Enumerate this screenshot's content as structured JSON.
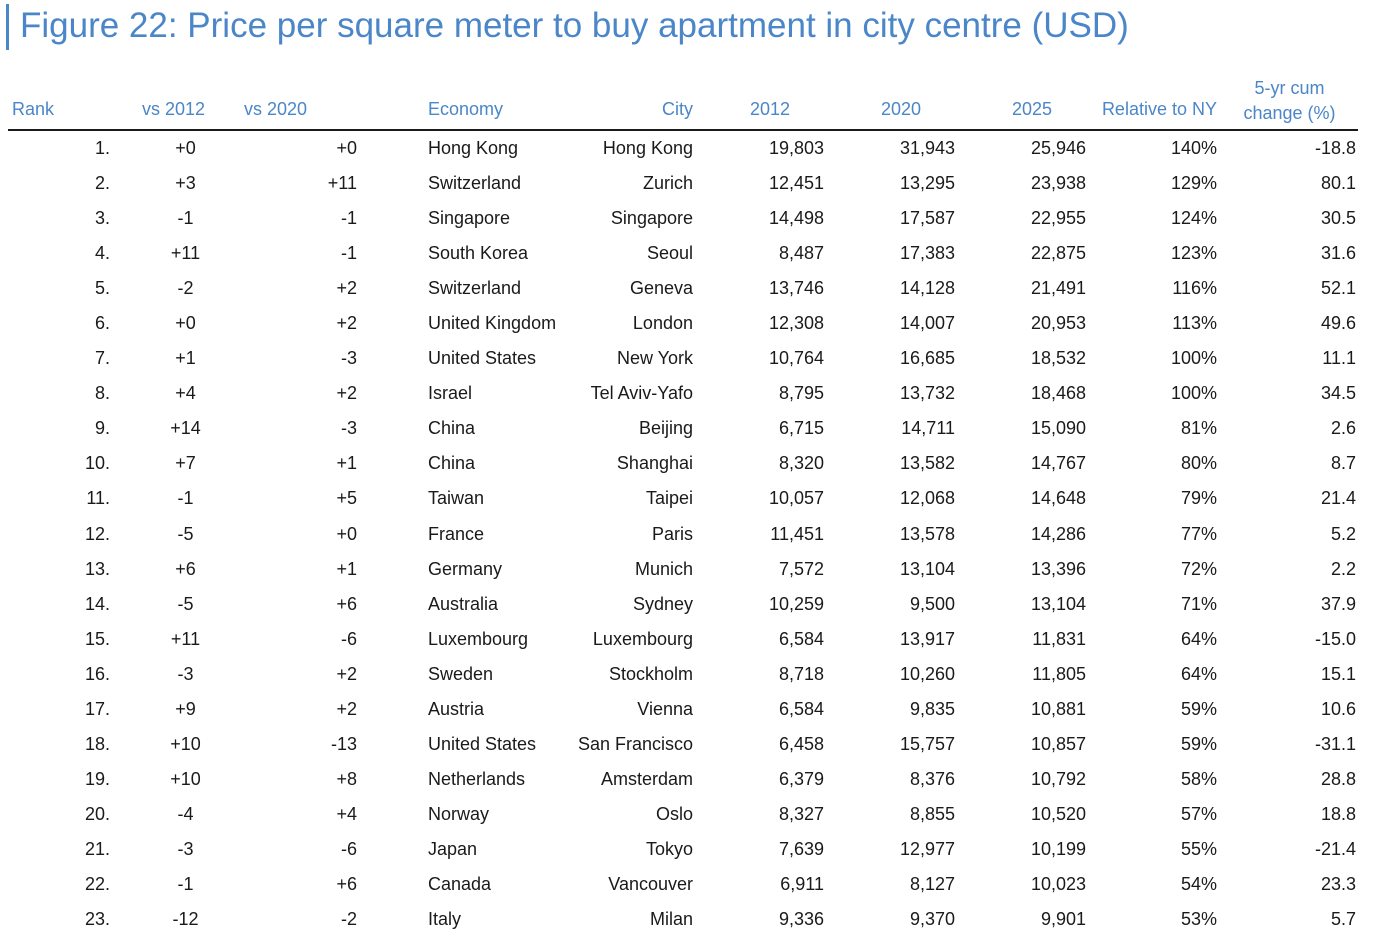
{
  "title": "Figure 22: Price per square meter to buy apartment in city centre (USD)",
  "chart_data": {
    "type": "table",
    "title": "Figure 22: Price per square meter to buy apartment in city centre (USD)",
    "columns": [
      "Rank",
      "vs 2012",
      "vs 2020",
      "Economy",
      "City",
      "2012",
      "2020",
      "2025",
      "Relative to NY",
      "5-yr cum change (%)"
    ],
    "rows": [
      [
        "1.",
        "+0",
        "+0",
        "Hong Kong",
        "Hong Kong",
        "19,803",
        "31,943",
        "25,946",
        "140%",
        "-18.8"
      ],
      [
        "2.",
        "+3",
        "+11",
        "Switzerland",
        "Zurich",
        "12,451",
        "13,295",
        "23,938",
        "129%",
        "80.1"
      ],
      [
        "3.",
        "-1",
        "-1",
        "Singapore",
        "Singapore",
        "14,498",
        "17,587",
        "22,955",
        "124%",
        "30.5"
      ],
      [
        "4.",
        "+11",
        "-1",
        "South Korea",
        "Seoul",
        "8,487",
        "17,383",
        "22,875",
        "123%",
        "31.6"
      ],
      [
        "5.",
        "-2",
        "+2",
        "Switzerland",
        "Geneva",
        "13,746",
        "14,128",
        "21,491",
        "116%",
        "52.1"
      ],
      [
        "6.",
        "+0",
        "+2",
        "United Kingdom",
        "London",
        "12,308",
        "14,007",
        "20,953",
        "113%",
        "49.6"
      ],
      [
        "7.",
        "+1",
        "-3",
        "United States",
        "New York",
        "10,764",
        "16,685",
        "18,532",
        "100%",
        "11.1"
      ],
      [
        "8.",
        "+4",
        "+2",
        "Israel",
        "Tel Aviv-Yafo",
        "8,795",
        "13,732",
        "18,468",
        "100%",
        "34.5"
      ],
      [
        "9.",
        "+14",
        "-3",
        "China",
        "Beijing",
        "6,715",
        "14,711",
        "15,090",
        "81%",
        "2.6"
      ],
      [
        "10.",
        "+7",
        "+1",
        "China",
        "Shanghai",
        "8,320",
        "13,582",
        "14,767",
        "80%",
        "8.7"
      ],
      [
        "11.",
        "-1",
        "+5",
        "Taiwan",
        "Taipei",
        "10,057",
        "12,068",
        "14,648",
        "79%",
        "21.4"
      ],
      [
        "12.",
        "-5",
        "+0",
        "France",
        "Paris",
        "11,451",
        "13,578",
        "14,286",
        "77%",
        "5.2"
      ],
      [
        "13.",
        "+6",
        "+1",
        "Germany",
        "Munich",
        "7,572",
        "13,104",
        "13,396",
        "72%",
        "2.2"
      ],
      [
        "14.",
        "-5",
        "+6",
        "Australia",
        "Sydney",
        "10,259",
        "9,500",
        "13,104",
        "71%",
        "37.9"
      ],
      [
        "15.",
        "+11",
        "-6",
        "Luxembourg",
        "Luxembourg",
        "6,584",
        "13,917",
        "11,831",
        "64%",
        "-15.0"
      ],
      [
        "16.",
        "-3",
        "+2",
        "Sweden",
        "Stockholm",
        "8,718",
        "10,260",
        "11,805",
        "64%",
        "15.1"
      ],
      [
        "17.",
        "+9",
        "+2",
        "Austria",
        "Vienna",
        "6,584",
        "9,835",
        "10,881",
        "59%",
        "10.6"
      ],
      [
        "18.",
        "+10",
        "-13",
        "United States",
        "San Francisco",
        "6,458",
        "15,757",
        "10,857",
        "59%",
        "-31.1"
      ],
      [
        "19.",
        "+10",
        "+8",
        "Netherlands",
        "Amsterdam",
        "6,379",
        "8,376",
        "10,792",
        "58%",
        "28.8"
      ],
      [
        "20.",
        "-4",
        "+4",
        "Norway",
        "Oslo",
        "8,327",
        "8,855",
        "10,520",
        "57%",
        "18.8"
      ],
      [
        "21.",
        "-3",
        "-6",
        "Japan",
        "Tokyo",
        "7,639",
        "12,977",
        "10,199",
        "55%",
        "-21.4"
      ],
      [
        "22.",
        "-1",
        "+6",
        "Canada",
        "Vancouver",
        "6,911",
        "8,127",
        "10,023",
        "54%",
        "23.3"
      ],
      [
        "23.",
        "-12",
        "-2",
        "Italy",
        "Milan",
        "9,336",
        "9,370",
        "9,901",
        "53%",
        "5.7"
      ]
    ]
  },
  "colors": {
    "accent": "#4a86c8",
    "text": "#1a1a1a",
    "rule": "#1a1a1a"
  }
}
